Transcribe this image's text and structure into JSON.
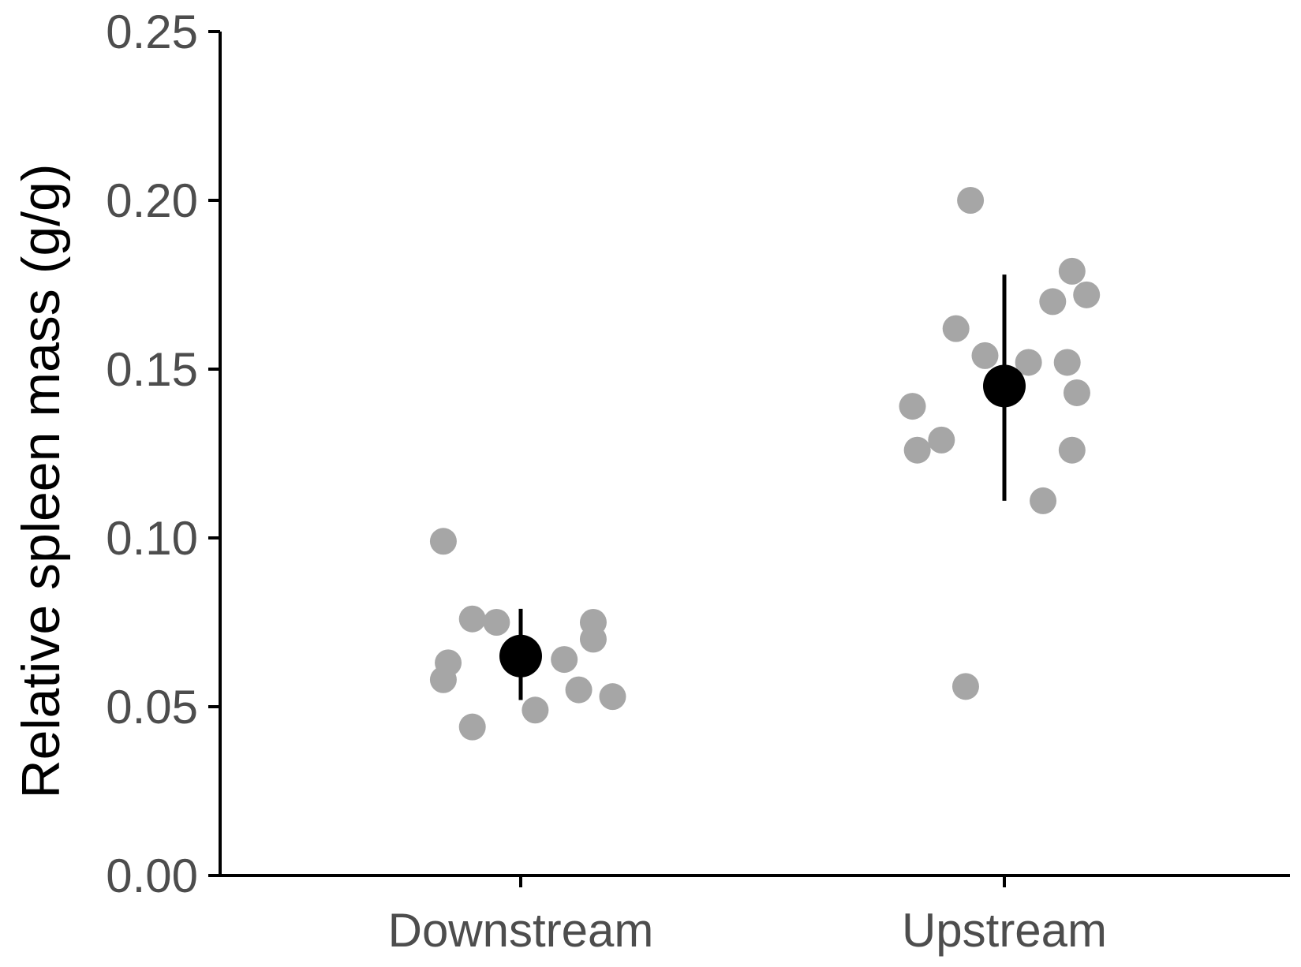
{
  "chart_data": {
    "type": "scatter",
    "ylabel": "Relative spleen mass (g/g)",
    "xlabel": "",
    "categories": [
      "Downstream",
      "Upstream"
    ],
    "ylim": [
      0,
      0.25
    ],
    "yticks": [
      "0.00",
      "0.05",
      "0.10",
      "0.15",
      "0.20",
      "0.25"
    ],
    "grid": false,
    "colors": {
      "points": "#a6a6a6",
      "summary": "#000000",
      "axis": "#000000",
      "tick_label": "#4d4d4d"
    },
    "series": [
      {
        "category": "Downstream",
        "points": [
          {
            "jitter": -0.16,
            "y": 0.099
          },
          {
            "jitter": -0.1,
            "y": 0.076
          },
          {
            "jitter": -0.05,
            "y": 0.075
          },
          {
            "jitter": 0.15,
            "y": 0.075
          },
          {
            "jitter": 0.15,
            "y": 0.07
          },
          {
            "jitter": -0.15,
            "y": 0.063
          },
          {
            "jitter": 0.09,
            "y": 0.064
          },
          {
            "jitter": -0.16,
            "y": 0.058
          },
          {
            "jitter": 0.12,
            "y": 0.055
          },
          {
            "jitter": 0.19,
            "y": 0.053
          },
          {
            "jitter": 0.03,
            "y": 0.049
          },
          {
            "jitter": -0.1,
            "y": 0.044
          }
        ],
        "mean": 0.065,
        "error": [
          0.052,
          0.079
        ]
      },
      {
        "category": "Upstream",
        "points": [
          {
            "jitter": -0.07,
            "y": 0.2
          },
          {
            "jitter": 0.14,
            "y": 0.179
          },
          {
            "jitter": 0.17,
            "y": 0.172
          },
          {
            "jitter": 0.1,
            "y": 0.17
          },
          {
            "jitter": -0.1,
            "y": 0.162
          },
          {
            "jitter": -0.04,
            "y": 0.154
          },
          {
            "jitter": 0.05,
            "y": 0.152
          },
          {
            "jitter": 0.13,
            "y": 0.152
          },
          {
            "jitter": 0.15,
            "y": 0.143
          },
          {
            "jitter": -0.19,
            "y": 0.139
          },
          {
            "jitter": -0.13,
            "y": 0.129
          },
          {
            "jitter": -0.18,
            "y": 0.126
          },
          {
            "jitter": 0.14,
            "y": 0.126
          },
          {
            "jitter": 0.08,
            "y": 0.111
          },
          {
            "jitter": -0.08,
            "y": 0.056
          }
        ],
        "mean": 0.145,
        "error": [
          0.111,
          0.178
        ]
      }
    ]
  }
}
